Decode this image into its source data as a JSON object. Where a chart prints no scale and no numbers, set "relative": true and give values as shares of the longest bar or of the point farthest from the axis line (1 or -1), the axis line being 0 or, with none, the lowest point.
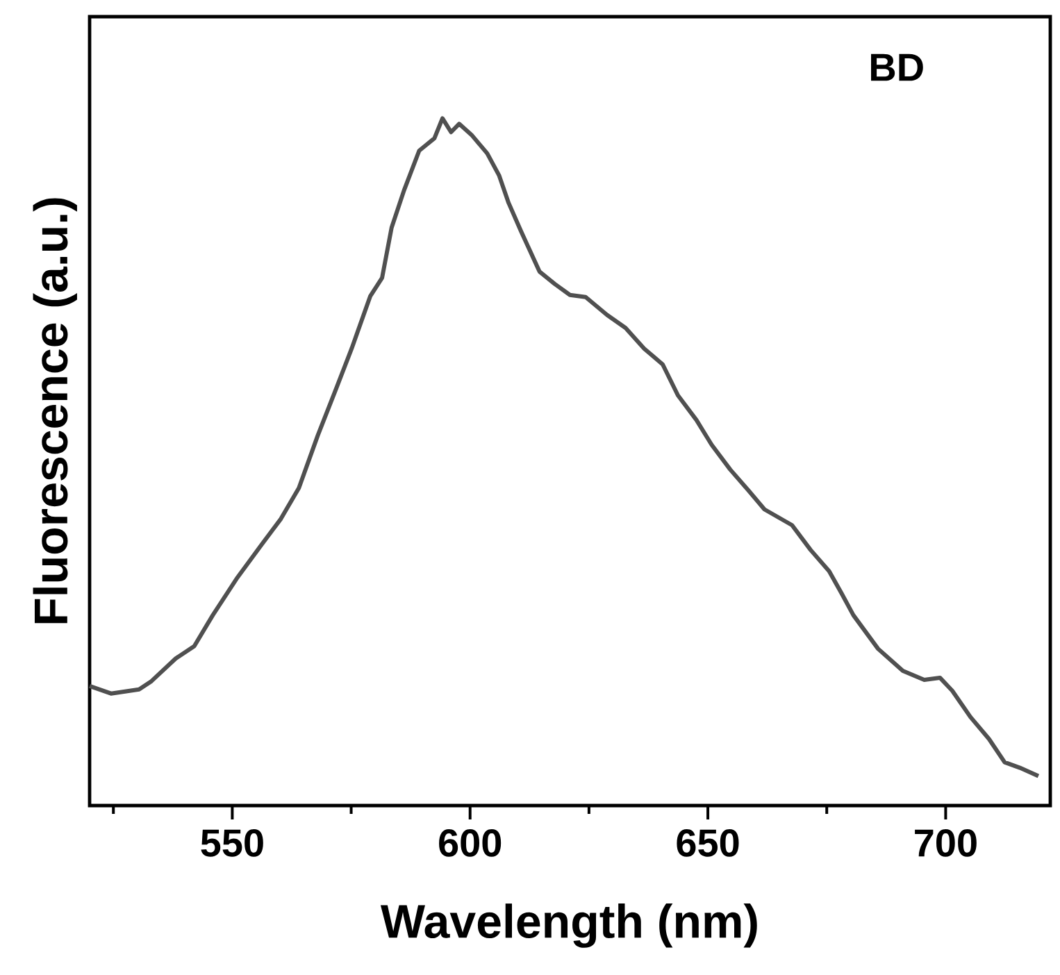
{
  "chart_data": {
    "type": "line",
    "xlabel": "Wavelength (nm)",
    "ylabel": "Fluorescence (a.u.)",
    "annotations": [
      "BD"
    ],
    "relative": true,
    "xlim": [
      520,
      722
    ],
    "xticks": [
      {
        "value": 525,
        "label": null
      },
      550,
      {
        "value": 575,
        "label": null
      },
      600,
      {
        "value": 625,
        "label": null
      },
      650,
      {
        "value": 675,
        "label": null
      },
      700
    ],
    "color": "#505050",
    "line_style": "solid",
    "x": [
      520.0,
      524.5,
      530.4,
      533.0,
      538.1,
      542.0,
      545.9,
      551.1,
      556.3,
      560.2,
      564.0,
      568.0,
      571.8,
      575.1,
      579.0,
      581.5,
      583.5,
      586.1,
      589.3,
      592.5,
      594.2,
      596.0,
      597.7,
      600.3,
      603.6,
      606.1,
      608.1,
      610.7,
      614.6,
      617.8,
      621.0,
      624.3,
      628.8,
      632.7,
      636.6,
      640.5,
      643.7,
      647.6,
      650.8,
      654.7,
      658.6,
      661.9,
      667.7,
      671.6,
      675.5,
      678.1,
      680.6,
      685.8,
      691.0,
      695.5,
      698.8,
      701.4,
      705.2,
      709.1,
      712.4,
      715.6,
      719.5
    ],
    "values": [
      0.174,
      0.163,
      0.169,
      0.181,
      0.214,
      0.232,
      0.277,
      0.332,
      0.381,
      0.417,
      0.462,
      0.539,
      0.606,
      0.665,
      0.741,
      0.768,
      0.841,
      0.895,
      0.953,
      0.971,
      1.0,
      0.98,
      0.992,
      0.976,
      0.949,
      0.917,
      0.877,
      0.836,
      0.777,
      0.759,
      0.743,
      0.74,
      0.714,
      0.695,
      0.665,
      0.642,
      0.597,
      0.561,
      0.525,
      0.489,
      0.458,
      0.431,
      0.408,
      0.372,
      0.341,
      0.309,
      0.277,
      0.228,
      0.196,
      0.183,
      0.186,
      0.167,
      0.129,
      0.097,
      0.063,
      0.055,
      0.043
    ]
  }
}
